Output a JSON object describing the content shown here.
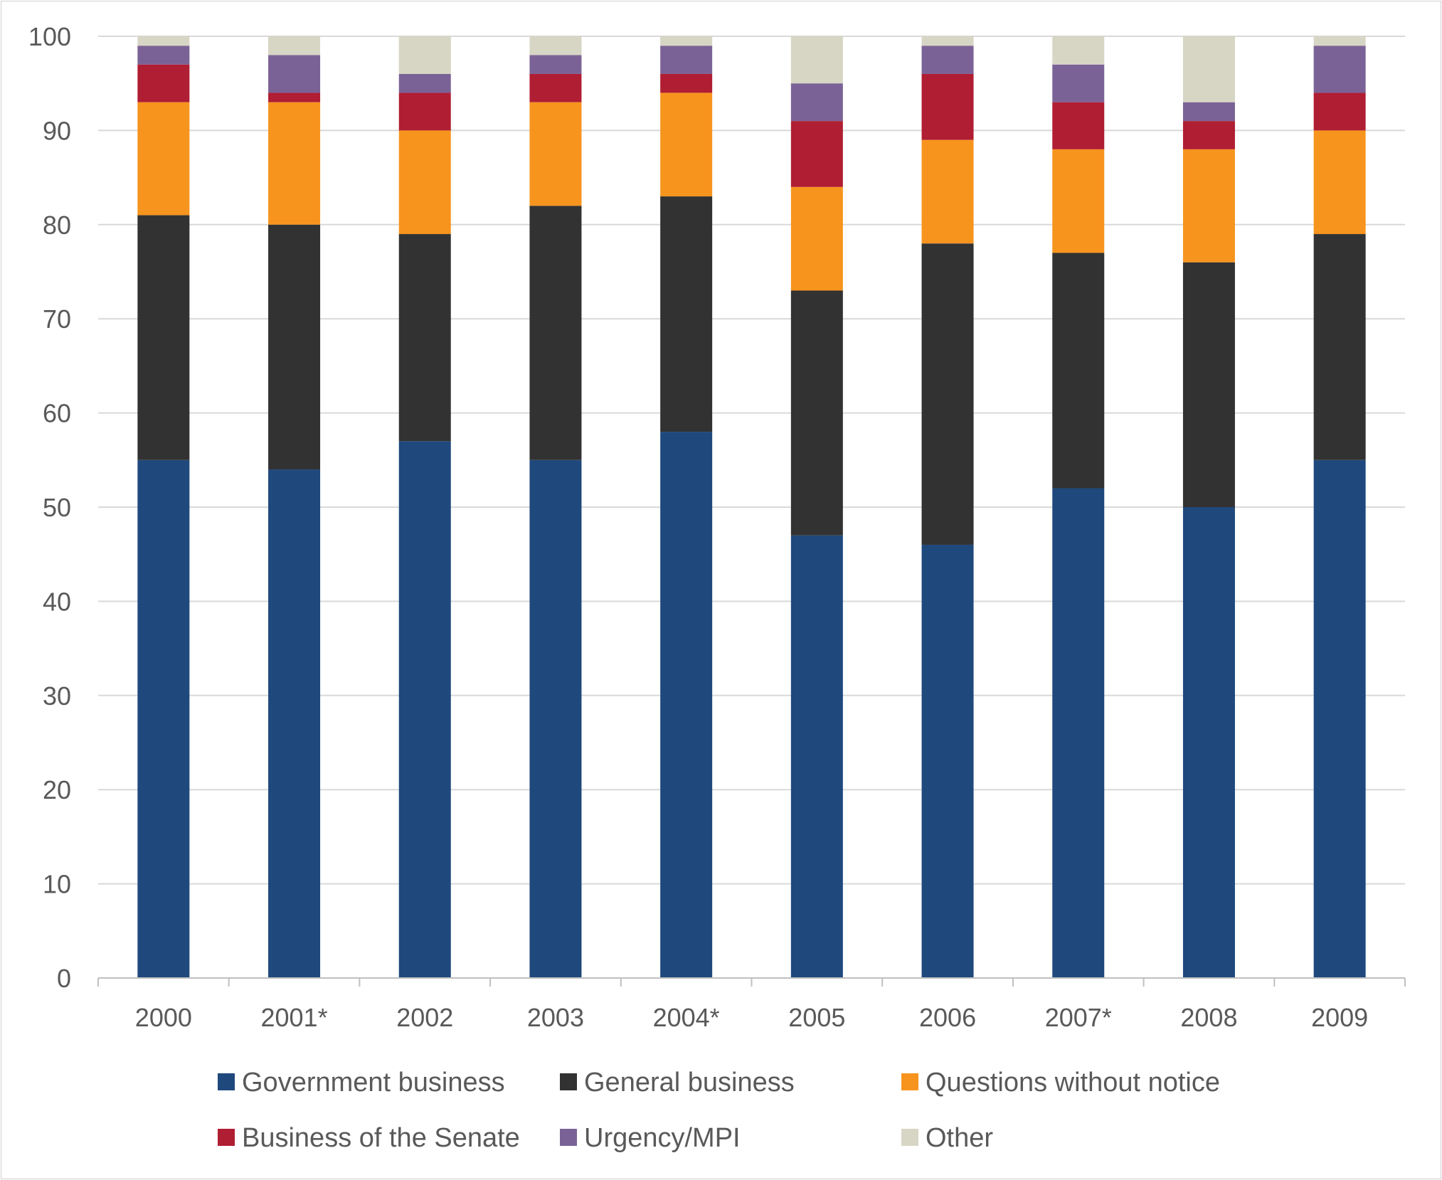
{
  "chart_data": {
    "type": "bar",
    "stacked": true,
    "categories": [
      "2000",
      "2001*",
      "2002",
      "2003",
      "2004*",
      "2005",
      "2006",
      "2007*",
      "2008",
      "2009"
    ],
    "series": [
      {
        "name": "Government business",
        "color": "#1f497d",
        "values": [
          55,
          54,
          57,
          55,
          58,
          47,
          46,
          52,
          50,
          55
        ]
      },
      {
        "name": "General business",
        "color": "#333232",
        "values": [
          26,
          26,
          22,
          27,
          25,
          26,
          32,
          25,
          26,
          24
        ]
      },
      {
        "name": "Questions without notice",
        "color": "#f7941e",
        "values": [
          12,
          13,
          11,
          11,
          11,
          11,
          11,
          11,
          12,
          11
        ]
      },
      {
        "name": "Business of the Senate",
        "color": "#b01e33",
        "values": [
          4,
          1,
          4,
          3,
          2,
          7,
          7,
          5,
          3,
          4
        ]
      },
      {
        "name": "Urgency/MPI",
        "color": "#7b6296",
        "values": [
          2,
          4,
          2,
          2,
          3,
          4,
          3,
          4,
          2,
          5
        ]
      },
      {
        "name": "Other",
        "color": "#d7d5c4",
        "values": [
          1,
          2,
          4,
          2,
          1,
          5,
          1,
          3,
          7,
          1
        ]
      }
    ],
    "ylim": [
      0,
      100
    ],
    "yticks": [
      0,
      10,
      20,
      30,
      40,
      50,
      60,
      70,
      80,
      90,
      100
    ],
    "grid": true,
    "legend_position": "bottom"
  }
}
